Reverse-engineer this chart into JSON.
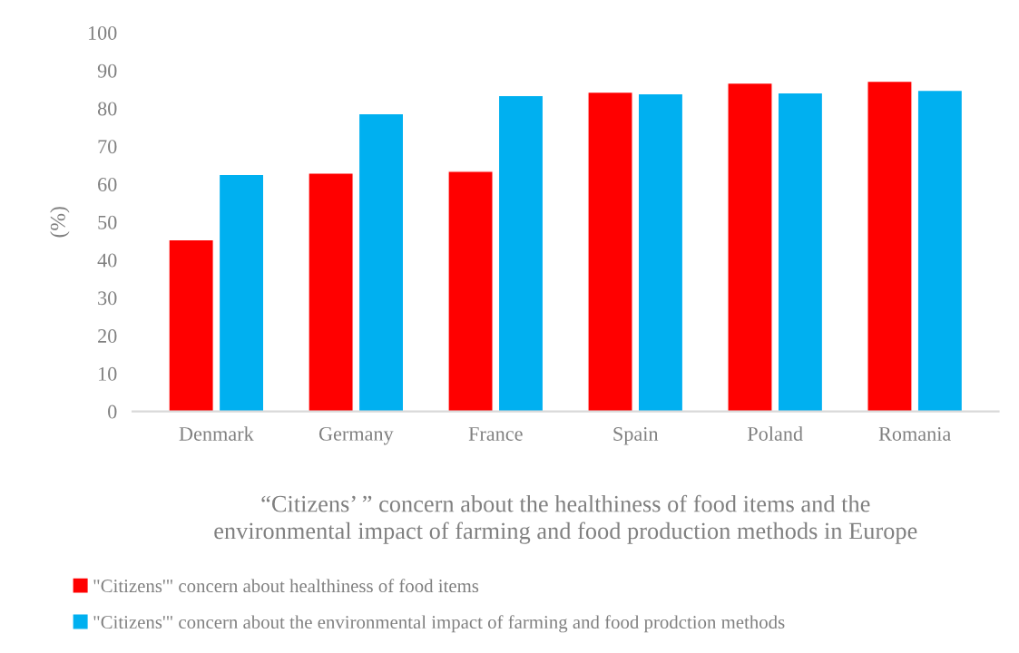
{
  "chart_data": {
    "type": "bar",
    "xlabel": "“Citizens’ ” concern about the healthiness of food items and the\nenvironmental impact of farming and food production methods in Europe",
    "ylabel": "(%)",
    "categories": [
      "Denmark",
      "Germany",
      "France",
      "Spain",
      "Poland",
      "Romania"
    ],
    "series": [
      {
        "name": "\"Citizens'\" concern about healthiness of food items",
        "color": "#ff0000",
        "values": [
          45.3,
          62.9,
          63.4,
          84.3,
          86.7,
          87.2
        ]
      },
      {
        "name": "\"Citizens'\" concern about the environmental impact of farming and food prodction methods",
        "color": "#00b0f0",
        "values": [
          62.6,
          78.6,
          83.4,
          83.9,
          84.1,
          84.8
        ]
      }
    ],
    "ylim": [
      0,
      100
    ],
    "yticks": [
      0,
      10,
      20,
      30,
      40,
      50,
      60,
      70,
      80,
      90,
      100
    ],
    "grid": false,
    "legend": "bottom"
  }
}
